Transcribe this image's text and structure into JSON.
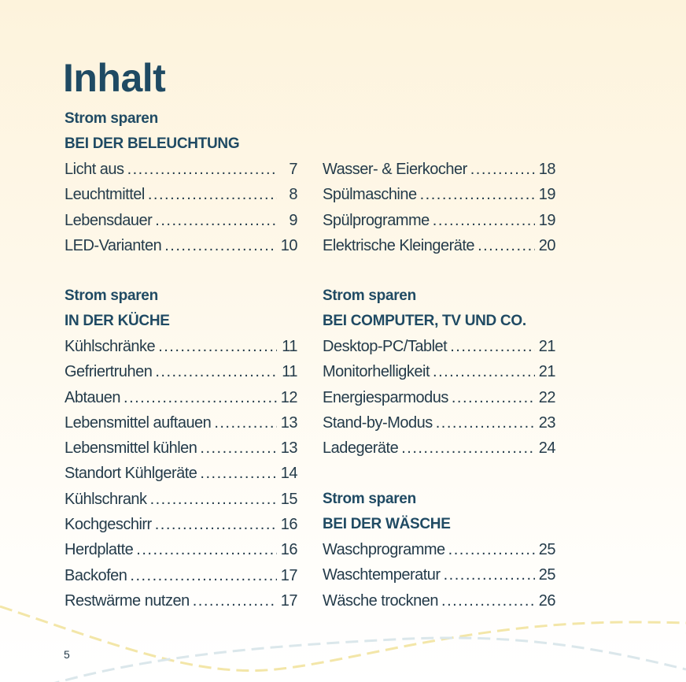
{
  "title": "Inhalt",
  "sections": [
    {
      "kicker": "Strom sparen",
      "heading": "BEI DER BELEUCHTUNG",
      "entries": [
        {
          "label": "Licht aus",
          "page": "7"
        },
        {
          "label": "Leuchtmittel",
          "page": "8"
        },
        {
          "label": "Lebensdauer",
          "page": "9"
        },
        {
          "label": "LED-Varianten",
          "page": "10"
        }
      ]
    },
    {
      "entries": [
        {
          "label": "Wasser- & Eierkocher",
          "page": "18"
        },
        {
          "label": "Spülmaschine",
          "page": "19"
        },
        {
          "label": "Spülprogramme",
          "page": "19"
        },
        {
          "label": "Elektrische Kleingeräte",
          "page": "20"
        }
      ]
    },
    {
      "kicker": "Strom sparen",
      "heading": "IN DER KÜCHE",
      "entries": [
        {
          "label": "Kühlschränke",
          "page": "11"
        },
        {
          "label": "Gefriertruhen",
          "page": "11"
        },
        {
          "label": "Abtauen",
          "page": "12"
        },
        {
          "label": "Lebensmittel auftauen",
          "page": "13"
        },
        {
          "label": "Lebensmittel kühlen",
          "page": "13"
        },
        {
          "label": "Standort Kühlgeräte",
          "page": "14"
        },
        {
          "label": "Kühlschrank",
          "page": "15"
        },
        {
          "label": "Kochgeschirr",
          "page": "16"
        },
        {
          "label": "Herdplatte",
          "page": "16"
        },
        {
          "label": "Backofen",
          "page": "17"
        },
        {
          "label": "Restwärme nutzen",
          "page": "17"
        }
      ]
    },
    {
      "kicker": "Strom sparen",
      "heading": "BEI COMPUTER, TV UND CO.",
      "entries": [
        {
          "label": "Desktop-PC/Tablet",
          "page": "21"
        },
        {
          "label": "Monitorhelligkeit",
          "page": "21"
        },
        {
          "label": "Energiesparmodus",
          "page": "22"
        },
        {
          "label": "Stand-by-Modus",
          "page": "23"
        },
        {
          "label": "Ladegeräte",
          "page": "24"
        }
      ]
    },
    {
      "kicker": "Strom sparen",
      "heading": "BEI DER WÄSCHE",
      "entries": [
        {
          "label": "Waschprogramme",
          "page": "25"
        },
        {
          "label": "Waschtemperatur",
          "page": "25"
        },
        {
          "label": "Wäsche trocknen",
          "page": "26"
        }
      ]
    }
  ],
  "page_number": "5",
  "colors": {
    "heading": "#1f4a63",
    "text": "#243b4a",
    "wave_yellow": "#f3e6a8",
    "wave_blue": "#d9e6ea"
  }
}
